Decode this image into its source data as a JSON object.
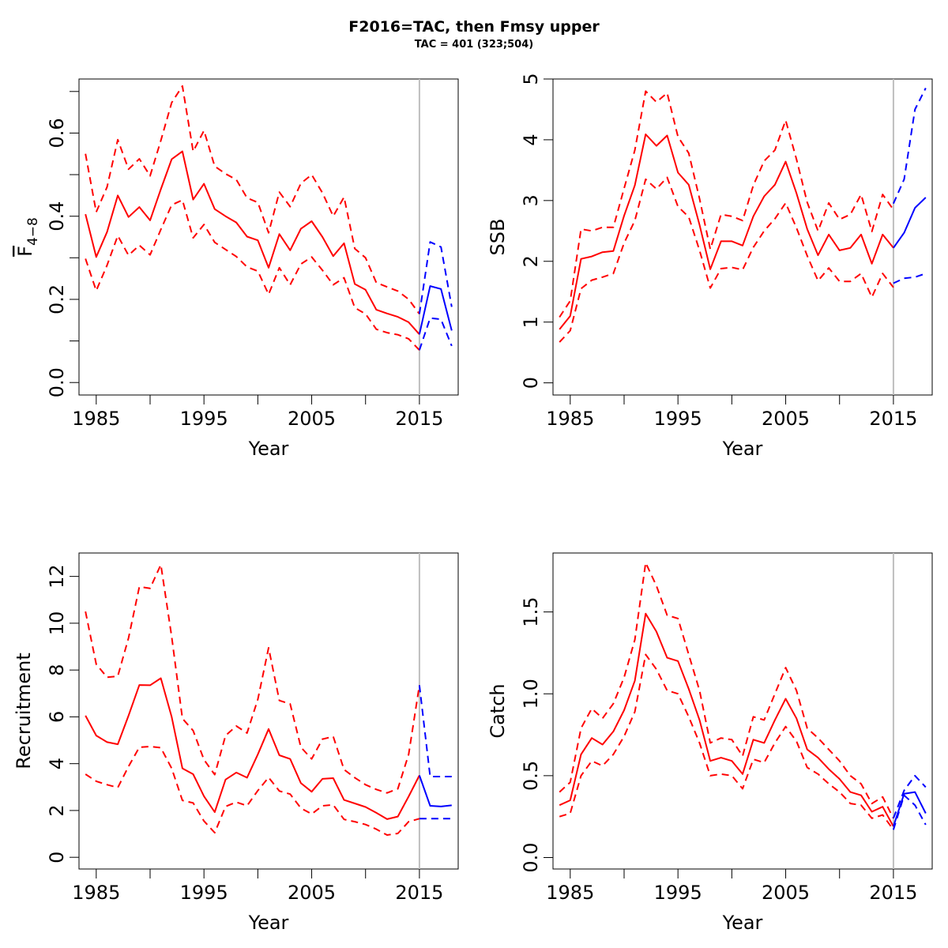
{
  "figure": {
    "title": "F2016=TAC, then Fmsy upper",
    "subtitle": "TAC = 401 (323;504)"
  },
  "colors": {
    "history": "#ff0000",
    "forecast": "#0000ff",
    "ref_line": "#bebebe",
    "axis": "#000000"
  },
  "chart_data": [
    {
      "type": "line",
      "ylabel": "F4-8",
      "ylabel_main": "F",
      "ylabel_sub": "4−8",
      "xlabel": "Year",
      "xlim": [
        1983.4,
        2018.6
      ],
      "ylim": [
        -0.03,
        0.73
      ],
      "x_ticks": [
        1985,
        1995,
        2005,
        2015
      ],
      "x_minor_ticks": [
        1990,
        2000,
        2010
      ],
      "y_ticks": [
        0.0,
        0.2,
        0.4,
        0.6
      ],
      "y_tick_labels": [
        "0.0",
        "0.2",
        "0.4",
        "0.6"
      ],
      "y_minor_ticks": [
        0.1,
        0.3,
        0.5,
        0.7
      ],
      "vline": 2015,
      "history_years": [
        1984,
        1985,
        1986,
        1987,
        1988,
        1989,
        1990,
        1991,
        1992,
        1993,
        1994,
        1995,
        1996,
        1997,
        1998,
        1999,
        2000,
        2001,
        2002,
        2003,
        2004,
        2005,
        2006,
        2007,
        2008,
        2009,
        2010,
        2011,
        2012,
        2013,
        2014,
        2015
      ],
      "history": {
        "median": [
          0.405,
          0.302,
          0.362,
          0.45,
          0.398,
          0.422,
          0.39,
          0.465,
          0.537,
          0.556,
          0.44,
          0.478,
          0.417,
          0.4,
          0.385,
          0.351,
          0.342,
          0.276,
          0.357,
          0.318,
          0.37,
          0.388,
          0.35,
          0.304,
          0.335,
          0.237,
          0.223,
          0.175,
          0.166,
          0.158,
          0.145,
          0.116
        ],
        "upper": [
          0.55,
          0.41,
          0.47,
          0.584,
          0.513,
          0.538,
          0.497,
          0.582,
          0.673,
          0.713,
          0.556,
          0.606,
          0.52,
          0.502,
          0.488,
          0.444,
          0.433,
          0.36,
          0.458,
          0.423,
          0.479,
          0.5,
          0.456,
          0.4,
          0.446,
          0.322,
          0.3,
          0.24,
          0.23,
          0.22,
          0.2,
          0.165
        ],
        "lower": [
          0.298,
          0.221,
          0.282,
          0.353,
          0.306,
          0.33,
          0.307,
          0.368,
          0.427,
          0.439,
          0.348,
          0.38,
          0.337,
          0.32,
          0.303,
          0.278,
          0.268,
          0.212,
          0.276,
          0.235,
          0.285,
          0.302,
          0.27,
          0.235,
          0.252,
          0.18,
          0.165,
          0.128,
          0.12,
          0.115,
          0.105,
          0.078
        ]
      },
      "forecast_years": [
        2015,
        2016,
        2017,
        2018
      ],
      "forecast": {
        "median": [
          0.116,
          0.232,
          0.225,
          0.125
        ],
        "upper": [
          0.165,
          0.338,
          0.326,
          0.182
        ],
        "lower": [
          0.078,
          0.155,
          0.152,
          0.088
        ]
      }
    },
    {
      "type": "line",
      "ylabel": "SSB",
      "xlabel": "Year",
      "xlim": [
        1983.4,
        2018.6
      ],
      "ylim": [
        -0.2,
        5.0
      ],
      "x_ticks": [
        1985,
        1995,
        2005,
        2015
      ],
      "x_minor_ticks": [
        1990,
        2000,
        2010
      ],
      "y_ticks": [
        0,
        1,
        2,
        3,
        4,
        5
      ],
      "y_tick_labels": [
        "0",
        "1",
        "2",
        "3",
        "4",
        "5"
      ],
      "y_minor_ticks": [],
      "vline": 2015,
      "history_years": [
        1984,
        1985,
        1986,
        1987,
        1988,
        1989,
        1990,
        1991,
        1992,
        1993,
        1994,
        1995,
        1996,
        1997,
        1998,
        1999,
        2000,
        2001,
        2002,
        2003,
        2004,
        2005,
        2006,
        2007,
        2008,
        2009,
        2010,
        2011,
        2012,
        2013,
        2014,
        2015
      ],
      "history": {
        "median": [
          0.88,
          1.1,
          2.04,
          2.08,
          2.15,
          2.17,
          2.75,
          3.25,
          4.09,
          3.9,
          4.07,
          3.46,
          3.26,
          2.6,
          1.87,
          2.33,
          2.33,
          2.26,
          2.74,
          3.07,
          3.26,
          3.64,
          3.12,
          2.53,
          2.1,
          2.44,
          2.18,
          2.22,
          2.44,
          1.96,
          2.44,
          2.22
        ],
        "upper": [
          1.08,
          1.35,
          2.53,
          2.5,
          2.56,
          2.56,
          3.2,
          3.83,
          4.8,
          4.62,
          4.77,
          4.05,
          3.78,
          3.03,
          2.2,
          2.77,
          2.74,
          2.67,
          3.25,
          3.65,
          3.83,
          4.32,
          3.68,
          2.97,
          2.5,
          2.96,
          2.69,
          2.77,
          3.1,
          2.49,
          3.1,
          2.85
        ],
        "lower": [
          0.67,
          0.86,
          1.55,
          1.69,
          1.74,
          1.8,
          2.3,
          2.67,
          3.35,
          3.19,
          3.38,
          2.9,
          2.73,
          2.18,
          1.56,
          1.88,
          1.9,
          1.86,
          2.23,
          2.5,
          2.7,
          2.96,
          2.55,
          2.09,
          1.68,
          1.89,
          1.67,
          1.67,
          1.8,
          1.41,
          1.8,
          1.57
        ]
      },
      "forecast_years": [
        2015,
        2016,
        2017,
        2018
      ],
      "forecast": {
        "median": [
          2.22,
          2.47,
          2.88,
          3.05
        ],
        "upper": [
          2.95,
          3.35,
          4.5,
          4.85
        ],
        "lower": [
          1.64,
          1.72,
          1.74,
          1.8
        ]
      }
    },
    {
      "type": "line",
      "ylabel": "Recruitment",
      "xlabel": "Year",
      "xlim": [
        1983.4,
        2018.6
      ],
      "ylim": [
        -0.5,
        13.0
      ],
      "x_ticks": [
        1985,
        1995,
        2005,
        2015
      ],
      "x_minor_ticks": [
        1990,
        2000,
        2010
      ],
      "y_ticks": [
        0,
        2,
        4,
        6,
        8,
        10,
        12
      ],
      "y_tick_labels": [
        "0",
        "2",
        "4",
        "6",
        "8",
        "10",
        "12"
      ],
      "y_minor_ticks": [],
      "vline": 2015,
      "history_years": [
        1984,
        1985,
        1986,
        1987,
        1988,
        1989,
        1990,
        1991,
        1992,
        1993,
        1994,
        1995,
        1996,
        1997,
        1998,
        1999,
        2000,
        2001,
        2002,
        2003,
        2004,
        2005,
        2006,
        2007,
        2008,
        2009,
        2010,
        2011,
        2012,
        2013,
        2014,
        2015
      ],
      "history": {
        "median": [
          6.05,
          5.2,
          4.92,
          4.83,
          6.05,
          7.36,
          7.35,
          7.65,
          6.0,
          3.8,
          3.55,
          2.61,
          1.93,
          3.32,
          3.62,
          3.4,
          4.4,
          5.48,
          4.36,
          4.2,
          3.17,
          2.8,
          3.35,
          3.38,
          2.45,
          2.3,
          2.15,
          1.9,
          1.63,
          1.74,
          2.6,
          3.5
        ],
        "upper": [
          10.5,
          8.25,
          7.69,
          7.74,
          9.37,
          11.56,
          11.49,
          12.5,
          9.43,
          5.93,
          5.41,
          4.17,
          3.53,
          5.2,
          5.61,
          5.31,
          6.75,
          8.95,
          6.7,
          6.55,
          4.7,
          4.2,
          5.05,
          5.16,
          3.75,
          3.4,
          3.1,
          2.9,
          2.75,
          2.93,
          4.4,
          7.35
        ],
        "lower": [
          3.55,
          3.25,
          3.1,
          2.98,
          3.88,
          4.7,
          4.73,
          4.68,
          3.8,
          2.43,
          2.32,
          1.55,
          1.05,
          2.17,
          2.36,
          2.2,
          2.85,
          3.41,
          2.83,
          2.7,
          2.1,
          1.85,
          2.2,
          2.24,
          1.62,
          1.52,
          1.4,
          1.2,
          0.95,
          1.02,
          1.52,
          1.65
        ]
      },
      "forecast_years": [
        2015,
        2016,
        2017,
        2018
      ],
      "forecast": {
        "median": [
          3.5,
          2.2,
          2.17,
          2.22
        ],
        "upper": [
          7.35,
          3.45,
          3.45,
          3.45
        ],
        "lower": [
          1.65,
          1.65,
          1.65,
          1.65
        ]
      }
    },
    {
      "type": "line",
      "ylabel": "Catch",
      "xlabel": "Year",
      "xlim": [
        1983.4,
        2018.6
      ],
      "ylim": [
        -0.07,
        1.86
      ],
      "x_ticks": [
        1985,
        1995,
        2005,
        2015
      ],
      "x_minor_ticks": [
        1990,
        2000,
        2010
      ],
      "y_ticks": [
        0.0,
        0.5,
        1.0,
        1.5
      ],
      "y_tick_labels": [
        "0.0",
        "0.5",
        "1.0",
        "1.5"
      ],
      "y_minor_ticks": [],
      "vline": 2015,
      "history_years": [
        1984,
        1985,
        1986,
        1987,
        1988,
        1989,
        1990,
        1991,
        1992,
        1993,
        1994,
        1995,
        1996,
        1997,
        1998,
        1999,
        2000,
        2001,
        2002,
        2003,
        2004,
        2005,
        2006,
        2007,
        2008,
        2009,
        2010,
        2011,
        2012,
        2013,
        2014,
        2015
      ],
      "history": {
        "median": [
          0.32,
          0.35,
          0.63,
          0.73,
          0.69,
          0.77,
          0.9,
          1.08,
          1.49,
          1.38,
          1.22,
          1.2,
          1.03,
          0.84,
          0.59,
          0.61,
          0.59,
          0.51,
          0.72,
          0.7,
          0.84,
          0.97,
          0.85,
          0.66,
          0.61,
          0.54,
          0.48,
          0.4,
          0.38,
          0.28,
          0.31,
          0.19
        ],
        "upper": [
          0.4,
          0.46,
          0.79,
          0.91,
          0.85,
          0.94,
          1.1,
          1.33,
          1.8,
          1.66,
          1.48,
          1.46,
          1.24,
          1.02,
          0.7,
          0.73,
          0.72,
          0.62,
          0.86,
          0.84,
          1.0,
          1.16,
          1.02,
          0.79,
          0.73,
          0.66,
          0.59,
          0.5,
          0.45,
          0.33,
          0.37,
          0.24
        ],
        "lower": [
          0.25,
          0.27,
          0.5,
          0.59,
          0.56,
          0.63,
          0.74,
          0.89,
          1.24,
          1.15,
          1.02,
          1.0,
          0.86,
          0.7,
          0.5,
          0.51,
          0.5,
          0.42,
          0.6,
          0.58,
          0.7,
          0.8,
          0.71,
          0.55,
          0.51,
          0.45,
          0.4,
          0.33,
          0.32,
          0.24,
          0.26,
          0.17
        ]
      },
      "forecast_years": [
        2015,
        2016,
        2017,
        2018
      ],
      "forecast": {
        "median": [
          0.19,
          0.39,
          0.4,
          0.27
        ],
        "upper": [
          0.24,
          0.41,
          0.5,
          0.43
        ],
        "lower": [
          0.17,
          0.38,
          0.32,
          0.2
        ]
      }
    }
  ]
}
